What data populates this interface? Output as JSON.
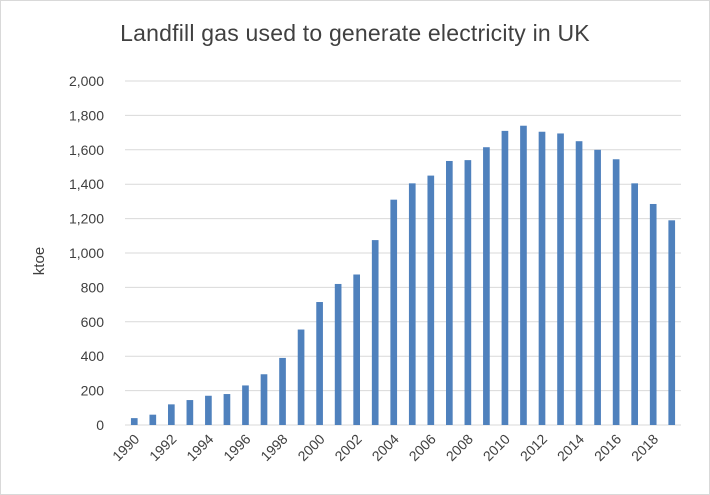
{
  "chart_data": {
    "type": "bar",
    "title": "Landfill gas used to generate electricity in UK",
    "ylabel": "ktoe",
    "xlabel": "",
    "ylim": [
      0,
      2000
    ],
    "yticks": [
      "0",
      "200",
      "400",
      "600",
      "800",
      "1,000",
      "1,200",
      "1,400",
      "1,600",
      "1,800",
      "2,000"
    ],
    "categories": [
      "1990",
      "1991",
      "1992",
      "1993",
      "1994",
      "1995",
      "1996",
      "1997",
      "1998",
      "1999",
      "2000",
      "2001",
      "2002",
      "2003",
      "2004",
      "2005",
      "2006",
      "2007",
      "2008",
      "2009",
      "2010",
      "2011",
      "2012",
      "2013",
      "2014",
      "2015",
      "2016",
      "2017",
      "2018",
      "2019"
    ],
    "x_tick_labels": [
      "1990",
      "1992",
      "1994",
      "1996",
      "1998",
      "2000",
      "2002",
      "2004",
      "2006",
      "2008",
      "2010",
      "2012",
      "2014",
      "2016",
      "2018"
    ],
    "values": [
      40,
      60,
      120,
      145,
      170,
      180,
      230,
      295,
      390,
      555,
      715,
      820,
      875,
      1075,
      1310,
      1405,
      1450,
      1535,
      1540,
      1615,
      1710,
      1740,
      1705,
      1695,
      1650,
      1600,
      1545,
      1405,
      1285,
      1190
    ],
    "grid": true,
    "legend": false,
    "colors": {
      "bar": "#4f81bd",
      "grid": "#d9d9d9",
      "text": "#404040"
    }
  }
}
